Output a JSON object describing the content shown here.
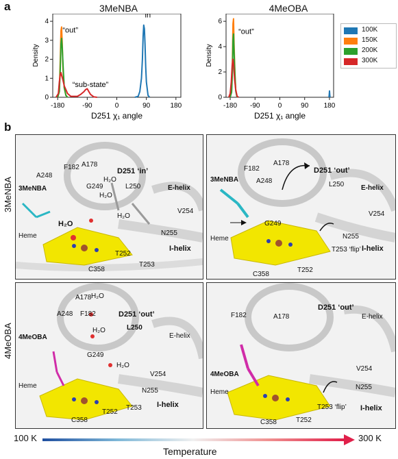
{
  "figure": {
    "panel_a_label": "a",
    "panel_b_label": "b",
    "row_labels": [
      "3MeNBA",
      "4MeOBA"
    ],
    "temperature_bar": {
      "low": "100 K",
      "high": "300 K",
      "label": "Temperature",
      "color_low": "#1f4fa0",
      "color_high": "#e0204a"
    }
  },
  "chart_data": [
    {
      "type": "line",
      "title": "3MeNBA",
      "ylabel": "Density",
      "xlabel": "D251 χ₁ angle",
      "xticks": [
        "-180",
        "-90",
        "0",
        "90",
        "180"
      ],
      "yticks": [
        "0",
        "1",
        "2",
        "3",
        "4"
      ],
      "xlim": [
        -195,
        195
      ],
      "ylim": [
        0,
        4.4
      ],
      "annotations": [
        "“out”",
        "“in”",
        "“sub-state”"
      ],
      "series": [
        {
          "name": "100K",
          "color": "#1f77b4",
          "x": [
            55,
            65,
            70,
            75,
            78,
            80,
            82,
            84,
            86,
            88,
            90,
            95,
            100
          ],
          "y": [
            0,
            0.05,
            0.3,
            1.0,
            2.0,
            3.2,
            3.8,
            3.6,
            2.8,
            1.6,
            0.8,
            0.1,
            0
          ]
        },
        {
          "name": "150K",
          "color": "#ff7f0e",
          "x": [
            -180,
            -175,
            -172,
            -170,
            -168,
            -166,
            -164,
            -160,
            -155,
            -150
          ],
          "y": [
            0,
            0.3,
            2.0,
            3.5,
            3.7,
            2.8,
            1.5,
            0.5,
            0.1,
            0
          ]
        },
        {
          "name": "200K",
          "color": "#2ca02c",
          "x": [
            -180,
            -175,
            -172,
            -170,
            -168,
            -166,
            -163,
            -160,
            -155,
            -150
          ],
          "y": [
            0,
            0.3,
            1.5,
            2.8,
            3.1,
            2.6,
            1.5,
            0.5,
            0.1,
            0
          ]
        },
        {
          "name": "300K",
          "color": "#d62728",
          "x": [
            -185,
            -178,
            -175,
            -172,
            -170,
            -167,
            -164,
            -160,
            -155,
            -150,
            -140,
            -120,
            -110,
            -100,
            -95,
            -90,
            -85,
            -80,
            -70,
            -60
          ],
          "y": [
            0,
            0.2,
            0.8,
            1.2,
            1.3,
            1.1,
            0.9,
            0.6,
            0.4,
            0.2,
            0.05,
            0.05,
            0.15,
            0.3,
            0.4,
            0.45,
            0.3,
            0.15,
            0.02,
            0
          ]
        }
      ]
    },
    {
      "type": "line",
      "title": "4MeOBA",
      "ylabel": "Density",
      "xlabel": "D251 χ₁ angle",
      "xticks": [
        "-180",
        "-90",
        "0",
        "90",
        "180"
      ],
      "yticks": [
        "0",
        "2",
        "4",
        "6"
      ],
      "xlim": [
        -195,
        195
      ],
      "ylim": [
        0,
        6.6
      ],
      "annotations": [
        "“out”"
      ],
      "legend": [
        "100K",
        "150K",
        "200K",
        "300K"
      ],
      "series": [
        {
          "name": "100K",
          "color": "#1f77b4",
          "x": [
            178,
            179,
            180,
            181,
            182
          ],
          "y": [
            0,
            0.2,
            0.5,
            0.2,
            0
          ]
        },
        {
          "name": "150K",
          "color": "#ff7f0e",
          "x": [
            -180,
            -175,
            -172,
            -170,
            -168,
            -166,
            -163,
            -160,
            -155
          ],
          "y": [
            0,
            0.5,
            3.0,
            5.8,
            6.2,
            4.2,
            2.0,
            0.6,
            0
          ]
        },
        {
          "name": "200K",
          "color": "#2ca02c",
          "x": [
            -180,
            -175,
            -172,
            -170,
            -168,
            -166,
            -163,
            -160,
            -155
          ],
          "y": [
            0,
            0.4,
            2.0,
            4.5,
            5.0,
            3.6,
            1.8,
            0.5,
            0
          ]
        },
        {
          "name": "300K",
          "color": "#d62728",
          "x": [
            -185,
            -180,
            -176,
            -173,
            -170,
            -167,
            -164,
            -160,
            -155,
            -150
          ],
          "y": [
            0,
            0.3,
            1.2,
            2.5,
            3.0,
            2.4,
            1.4,
            0.6,
            0.1,
            0
          ]
        }
      ]
    }
  ],
  "structures": [
    {
      "id": "3menba-100k",
      "labels": [
        "A248",
        "F182",
        "A178",
        "D251 ‘in’",
        "G249",
        "H₂O",
        "H₂O",
        "L250",
        "3MeNBA",
        "H₂O",
        "H₂O",
        "E-helix",
        "V254",
        "N255",
        "Heme",
        "T252",
        "T253",
        "I-helix",
        "C358"
      ]
    },
    {
      "id": "3menba-300k",
      "labels": [
        "F182",
        "A178",
        "D251 ‘out’",
        "3MeNBA",
        "A248",
        "L250",
        "E-helix",
        "V254",
        "G249",
        "N255",
        "Heme",
        "T253 ‘flip’",
        "I-helix",
        "T252",
        "C358"
      ]
    },
    {
      "id": "4meoba-100k",
      "labels": [
        "A178",
        "H₂O",
        "A248",
        "F182",
        "D251 ‘out’",
        "4MeOBA",
        "H₂O",
        "L250",
        "E-helix",
        "G249",
        "H₂O",
        "V254",
        "N255",
        "Heme",
        "T252",
        "T253",
        "I-helix",
        "C358"
      ]
    },
    {
      "id": "4meoba-300k",
      "labels": [
        "F182",
        "A178",
        "D251 ‘out’",
        "E-helix",
        "4MeOBA",
        "V254",
        "N255",
        "Heme",
        "T253 ‘flip’",
        "I-helix",
        "T252",
        "C358"
      ]
    }
  ]
}
